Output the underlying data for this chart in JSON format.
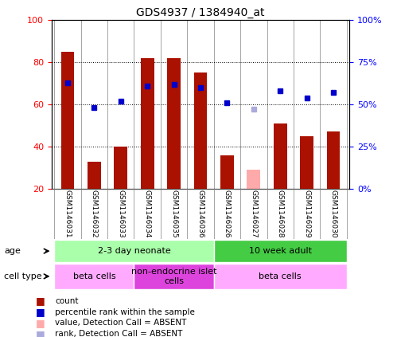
{
  "title": "GDS4937 / 1384940_at",
  "samples": [
    "GSM1146031",
    "GSM1146032",
    "GSM1146033",
    "GSM1146034",
    "GSM1146035",
    "GSM1146036",
    "GSM1146026",
    "GSM1146027",
    "GSM1146028",
    "GSM1146029",
    "GSM1146030"
  ],
  "bar_values": [
    85,
    33,
    40,
    82,
    82,
    75,
    36,
    null,
    51,
    45,
    47
  ],
  "bar_absent": [
    null,
    null,
    null,
    null,
    null,
    null,
    null,
    29,
    null,
    null,
    null
  ],
  "rank_values": [
    63,
    48,
    52,
    61,
    62,
    60,
    51,
    null,
    58,
    54,
    57
  ],
  "rank_absent": [
    null,
    null,
    null,
    null,
    null,
    null,
    null,
    47,
    null,
    null,
    null
  ],
  "ylim": [
    20,
    100
  ],
  "y2lim": [
    0,
    100
  ],
  "yticks": [
    20,
    40,
    60,
    80,
    100
  ],
  "y2ticks": [
    0,
    25,
    50,
    75,
    100
  ],
  "grid_lines": [
    40,
    60,
    80
  ],
  "bar_color": "#aa1100",
  "bar_absent_color": "#ffaaaa",
  "rank_color": "#0000cc",
  "rank_absent_color": "#aaaadd",
  "age_groups": [
    {
      "label": "2-3 day neonate",
      "start": 0,
      "end": 6,
      "color": "#aaffaa"
    },
    {
      "label": "10 week adult",
      "start": 6,
      "end": 11,
      "color": "#44cc44"
    }
  ],
  "cell_groups": [
    {
      "label": "beta cells",
      "start": 0,
      "end": 3,
      "color": "#ffaaff"
    },
    {
      "label": "non-endocrine islet\ncells",
      "start": 3,
      "end": 6,
      "color": "#dd44dd"
    },
    {
      "label": "beta cells",
      "start": 6,
      "end": 11,
      "color": "#ffaaff"
    }
  ],
  "legend_items": [
    {
      "label": "count",
      "color": "#aa1100"
    },
    {
      "label": "percentile rank within the sample",
      "color": "#0000cc"
    },
    {
      "label": "value, Detection Call = ABSENT",
      "color": "#ffaaaa"
    },
    {
      "label": "rank, Detection Call = ABSENT",
      "color": "#aaaadd"
    }
  ]
}
